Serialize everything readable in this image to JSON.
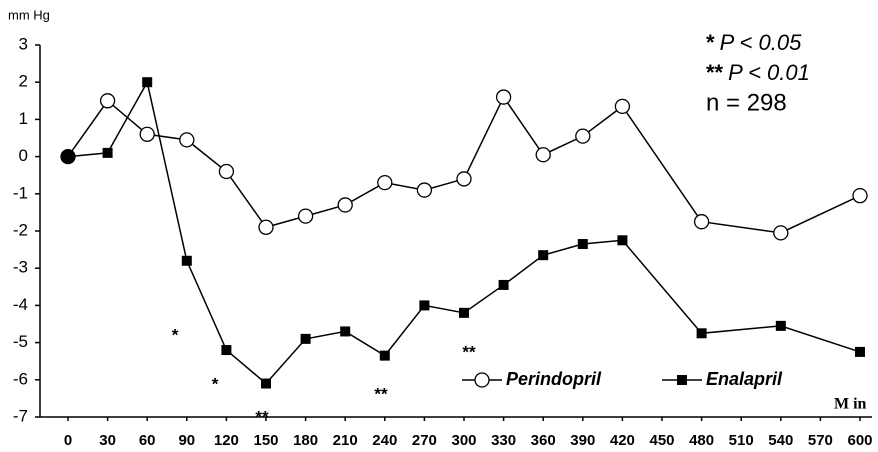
{
  "chart_data": {
    "type": "line",
    "y_label": "mm Hg",
    "x_label": "M in",
    "x": [
      0,
      30,
      60,
      90,
      120,
      150,
      180,
      210,
      240,
      270,
      300,
      330,
      360,
      390,
      420,
      480,
      540,
      600
    ],
    "series": [
      {
        "name": "Perindopril",
        "color": "#000000",
        "marker": "circle",
        "values": [
          0,
          1.5,
          0.6,
          0.45,
          -0.4,
          -1.9,
          -1.6,
          -1.3,
          -0.7,
          -0.9,
          -0.6,
          1.6,
          0.05,
          0.55,
          1.35,
          -1.75,
          -2.05,
          -1.05
        ]
      },
      {
        "name": "Enalapril",
        "color": "#000000",
        "marker": "square",
        "values": [
          0,
          0.1,
          2.0,
          -2.8,
          -5.2,
          -6.1,
          -4.9,
          -4.7,
          -5.35,
          -4.0,
          -4.2,
          -3.45,
          -2.65,
          -2.35,
          -2.25,
          -4.75,
          -4.55,
          -5.25
        ]
      }
    ],
    "xlim": [
      0,
      600
    ],
    "xticks": [
      0,
      30,
      60,
      90,
      120,
      150,
      180,
      210,
      240,
      270,
      300,
      330,
      360,
      390,
      420,
      450,
      480,
      510,
      540,
      570,
      600
    ],
    "ylim": [
      -7,
      3
    ],
    "yticks": [
      3,
      2,
      1,
      0,
      -1,
      -2,
      -3,
      -4,
      -5,
      -6,
      -7
    ],
    "annotations": [
      "*",
      "*",
      "**",
      "**",
      "**"
    ],
    "notes": [
      {
        "stars": "*",
        "text": "P < 0.05"
      },
      {
        "stars": "**",
        "text": "P < 0.01"
      }
    ],
    "n_label": "n = 298",
    "legend": "bottom-right"
  }
}
